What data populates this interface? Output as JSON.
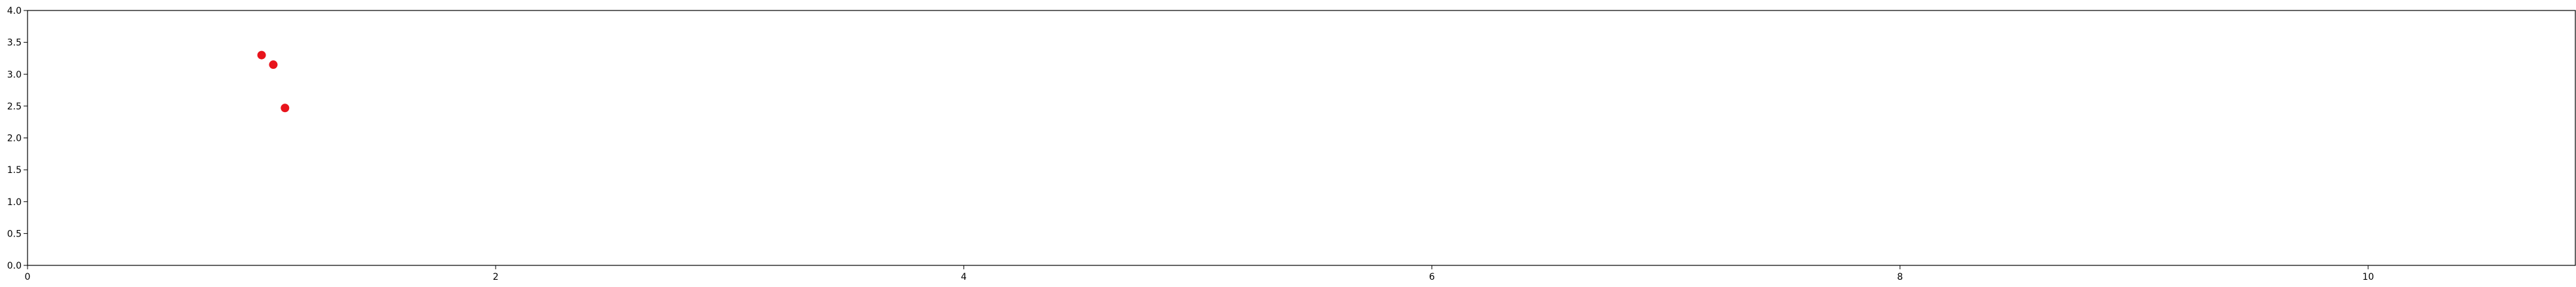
{
  "chart_data": {
    "type": "scatter",
    "title": "",
    "xlabel": "",
    "ylabel": "",
    "xlim": [
      0,
      11
    ],
    "ylim": [
      0,
      4
    ],
    "xticks": [
      0,
      2,
      4,
      6,
      8,
      10
    ],
    "yticks": [
      0,
      0.5,
      1,
      1.5,
      2,
      2.5,
      3,
      3.5,
      4
    ],
    "xtick_labels": [
      "0",
      "2",
      "4",
      "6",
      "8",
      "10"
    ],
    "ytick_labels": [
      "0.0",
      "0.5",
      "1.0",
      "1.5",
      "2.0",
      "2.5",
      "3.0",
      "3.5",
      "4.0"
    ],
    "grid": false,
    "series": [
      {
        "color": "#e8141c",
        "points": [
          {
            "x": 1.0,
            "y": 3.3
          },
          {
            "x": 1.05,
            "y": 3.15
          },
          {
            "x": 1.1,
            "y": 2.47
          }
        ]
      }
    ]
  }
}
